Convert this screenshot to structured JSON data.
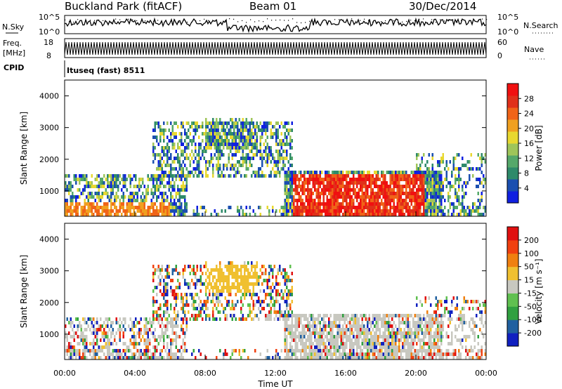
{
  "header": {
    "station": "Buckland Park (fitACF)",
    "beam": "Beam 01",
    "date": "30/Dec/2014"
  },
  "top_panels": {
    "nsky_label": "N.Sky",
    "nsky_top": "10^5",
    "nsky_bottom": "10^0",
    "nsearch_label": "N.Search",
    "freq_label_1": "Freq.",
    "freq_label_2": "[MHz]",
    "freq_top": "18",
    "freq_bottom": "8",
    "nave_label": "Nave",
    "nave_top": "60",
    "nave_bottom": "0",
    "cpid_label": "CPID",
    "cpid_text": "Ituseq (fast) 8511"
  },
  "chart_data": [
    {
      "type": "heatmap",
      "name": "power",
      "ylabel": "Slant Range [km]",
      "xlabel": "",
      "ylim": [
        200,
        4500
      ],
      "xlim_hours": [
        0,
        24
      ],
      "y_ticks": [
        "1000",
        "2000",
        "3000",
        "4000"
      ],
      "colorbar": {
        "label": "Power [dB]",
        "range": [
          0,
          32
        ],
        "ticks": [
          "4",
          "8",
          "12",
          "16",
          "20",
          "24",
          "28"
        ],
        "colors": [
          "#1020e0",
          "#1b4fb0",
          "#2e8a6a",
          "#55a86a",
          "#9fc55a",
          "#e8d830",
          "#f0a020",
          "#f06418",
          "#e0301a",
          "#f01010"
        ]
      }
    },
    {
      "type": "heatmap",
      "name": "velocity",
      "ylabel": "Slant Range [km]",
      "xlabel": "Time UT",
      "ylim": [
        200,
        4500
      ],
      "xlim_hours": [
        0,
        24
      ],
      "y_ticks": [
        "1000",
        "2000",
        "3000",
        "4000"
      ],
      "x_ticks": [
        "00:00",
        "04:00",
        "08:00",
        "12:00",
        "16:00",
        "20:00",
        "00:00"
      ],
      "colorbar": {
        "label": "Velocity [m s⁻¹]",
        "range": [
          -250,
          250
        ],
        "ticks": [
          "200",
          "100",
          "50",
          "15",
          "-15",
          "-50",
          "-100",
          "-200"
        ],
        "colors": [
          "#1020c0",
          "#2060a0",
          "#30a040",
          "#60c050",
          "#c8c8c0",
          "#f0c030",
          "#f08010",
          "#f04010",
          "#e01010"
        ]
      }
    }
  ]
}
